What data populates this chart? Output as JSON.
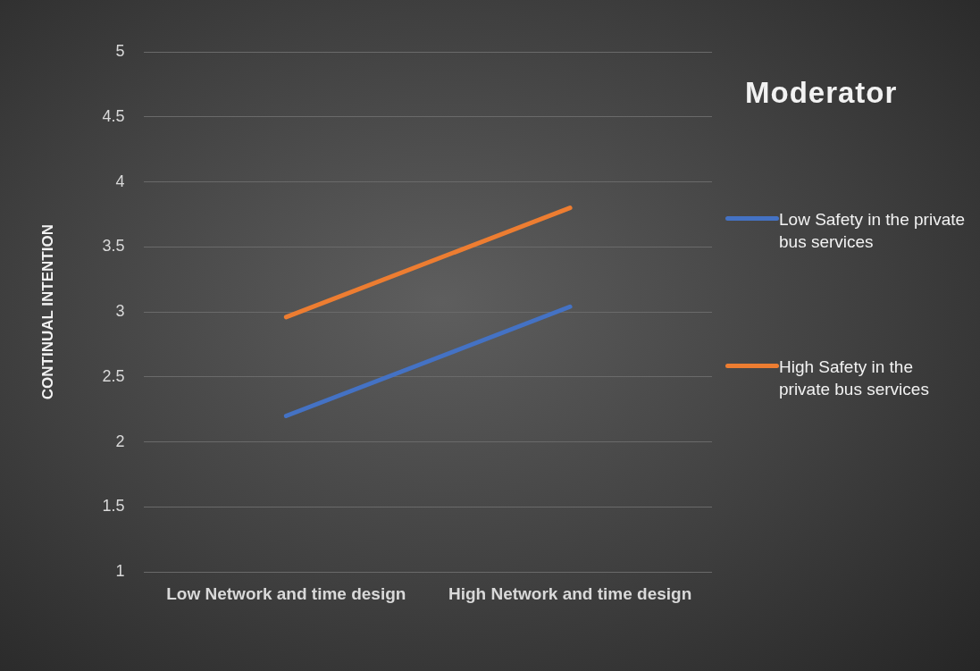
{
  "chart_data": {
    "type": "line",
    "ylabel": "CONTINUAL INTENTION",
    "legend_title": "Moderator",
    "legend": "right",
    "grid": "y",
    "marker": "none",
    "line_style": "solid",
    "categories": [
      "Low Network and time design",
      "High Network and time design"
    ],
    "ylim": [
      1,
      5
    ],
    "yticks": [
      1,
      1.5,
      2,
      2.5,
      3,
      3.5,
      4,
      4.5,
      5
    ],
    "series": [
      {
        "name": "Low Safety in the private bus services",
        "color": "#4472c4",
        "values": [
          2.2,
          3.04
        ]
      },
      {
        "name": "High Safety in the private bus services",
        "color": "#ed7d31",
        "values": [
          2.96,
          3.8
        ]
      }
    ]
  }
}
